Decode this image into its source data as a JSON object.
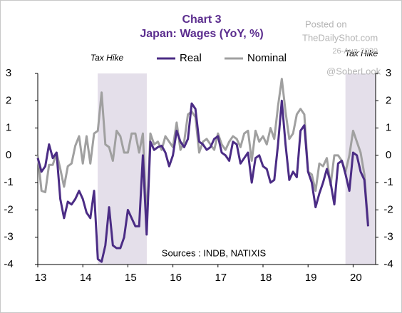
{
  "chart_data": {
    "type": "line",
    "title": "Chart 3",
    "subtitle": "Japan: Wages (YoY, %)",
    "source": "Sources : INDB, NATIXIS",
    "watermark": [
      "Posted on",
      "TheDailyShot.com",
      "26-Aug-2020",
      "@SoberLook"
    ],
    "shaded": [
      {
        "start": 14.33,
        "end": 15.42,
        "label": "Tax Hike"
      },
      {
        "start": 19.83,
        "end": 20.5,
        "label": "Tax Hike"
      }
    ],
    "x": [
      13,
      13.083,
      13.167,
      13.25,
      13.333,
      13.417,
      13.5,
      13.583,
      13.667,
      13.75,
      13.833,
      13.917,
      14,
      14.083,
      14.167,
      14.25,
      14.333,
      14.417,
      14.5,
      14.583,
      14.667,
      14.75,
      14.833,
      14.917,
      15,
      15.083,
      15.167,
      15.25,
      15.333,
      15.417,
      15.5,
      15.583,
      15.667,
      15.75,
      15.833,
      15.917,
      16,
      16.083,
      16.167,
      16.25,
      16.333,
      16.417,
      16.5,
      16.583,
      16.667,
      16.75,
      16.833,
      16.917,
      17,
      17.083,
      17.167,
      17.25,
      17.333,
      17.417,
      17.5,
      17.583,
      17.667,
      17.75,
      17.833,
      17.917,
      18,
      18.083,
      18.167,
      18.25,
      18.333,
      18.417,
      18.5,
      18.583,
      18.667,
      18.75,
      18.833,
      18.917,
      19,
      19.083,
      19.167,
      19.25,
      19.333,
      19.417,
      19.5,
      19.583,
      19.667,
      19.75,
      19.833,
      19.917,
      20,
      20.083,
      20.167,
      20.25,
      20.333
    ],
    "series": [
      {
        "name": "Real",
        "color": "#4b2c85",
        "values": [
          -0.1,
          -0.6,
          -0.4,
          0.4,
          -0.1,
          0.1,
          -1.6,
          -2.3,
          -1.7,
          -1.8,
          -1.6,
          -1.3,
          -1.6,
          -2.1,
          -2.3,
          -1.3,
          -3.8,
          -3.9,
          -3.3,
          -1.9,
          -3.3,
          -3.4,
          -3.4,
          -3.0,
          -2.0,
          -2.3,
          -2.6,
          -2.6,
          0.0,
          -2.9,
          0.5,
          0.2,
          0.3,
          0.35,
          0.1,
          -0.4,
          0.0,
          0.9,
          0.5,
          0.3,
          0.6,
          1.9,
          1.7,
          0.5,
          0.4,
          0.2,
          0.3,
          0.6,
          0.7,
          0.1,
          0.0,
          -0.2,
          0.5,
          0.4,
          -0.3,
          -0.1,
          0.1,
          -1.0,
          -0.1,
          0.0,
          -0.4,
          -0.5,
          -1.0,
          -0.9,
          0.4,
          2.0,
          0.4,
          -0.9,
          -0.6,
          -0.8,
          0.9,
          1.1,
          -0.6,
          -1.0,
          -1.9,
          -1.4,
          -1.0,
          -0.5,
          -1.0,
          -1.8,
          -0.3,
          -0.2,
          -0.7,
          -1.3,
          0.1,
          0.0,
          -0.6,
          -0.9,
          -2.6
        ]
      },
      {
        "name": "Nominal",
        "color": "#a0a0a0",
        "values": [
          0.0,
          -1.3,
          -1.35,
          -0.35,
          -0.35,
          0.1,
          -0.5,
          -1.15,
          -0.4,
          -0.3,
          0.35,
          0.7,
          -0.3,
          0.7,
          -0.3,
          0.8,
          0.9,
          2.3,
          0.4,
          0.3,
          -0.2,
          0.9,
          0.7,
          0.1,
          0.1,
          0.8,
          0.8,
          0.1,
          0.8,
          -2.4,
          0.8,
          0.4,
          0.5,
          0.2,
          0.7,
          0.5,
          0.3,
          1.2,
          0.2,
          0.5,
          1.5,
          1.6,
          1.4,
          0.1,
          0.5,
          0.6,
          0.4,
          0.2,
          0.8,
          0.4,
          0.2,
          0.5,
          0.7,
          0.6,
          0.3,
          0.8,
          0.9,
          -0.2,
          0.9,
          0.5,
          0.7,
          0.4,
          1.0,
          0.6,
          1.8,
          2.8,
          1.6,
          0.6,
          0.8,
          1.5,
          1.7,
          1.5,
          -0.6,
          -0.7,
          -1.3,
          -0.3,
          -0.4,
          -0.1,
          -1.1,
          0.0,
          0.0,
          -0.2,
          -0.6,
          0.0,
          0.9,
          0.5,
          0.1,
          -0.7,
          -2.5
        ]
      }
    ],
    "xlim": [
      13,
      20.5
    ],
    "xticks": [
      13,
      14,
      15,
      16,
      17,
      18,
      19,
      20
    ],
    "ylim": [
      -4,
      3
    ],
    "yticks": [
      -4,
      -3,
      -2,
      -1,
      0,
      1,
      2,
      3
    ],
    "y2lim": [
      -4,
      3
    ],
    "y2ticks": [
      -4,
      -3,
      -2,
      -1,
      0,
      1,
      2,
      3
    ],
    "shade_color": "#e4dfea"
  }
}
